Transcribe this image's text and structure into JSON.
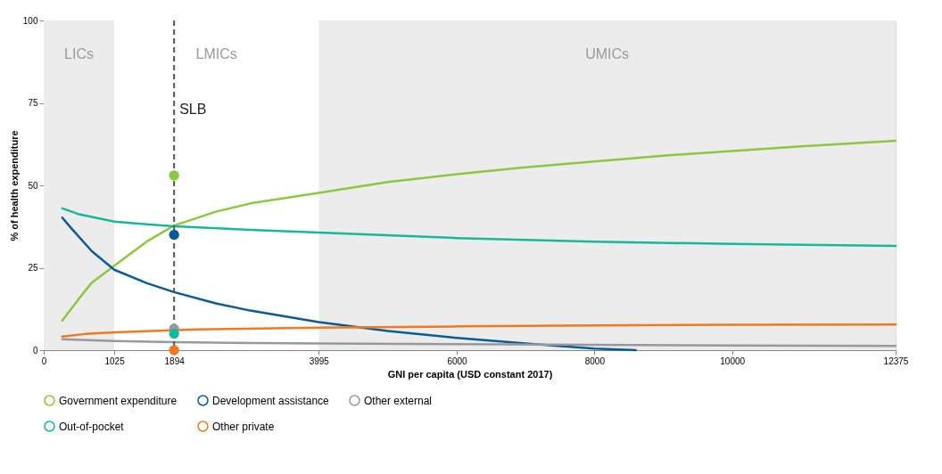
{
  "chart_data": {
    "type": "line",
    "xlabel": "GNI per capita (USD constant 2017)",
    "ylabel": "% of health expenditure",
    "xlim": [
      0,
      12375
    ],
    "xticks": [
      0,
      1025,
      1894,
      3995,
      6000,
      8000,
      10000,
      12375
    ],
    "ylim": [
      0,
      100
    ],
    "yticks": [
      0,
      25,
      50,
      75,
      100
    ],
    "grid": false,
    "legend": "bottom",
    "series": [
      {
        "name": "Government expenditure",
        "color": "#8dc63f",
        "x": [
          270,
          500,
          700,
          1025,
          1500,
          1894,
          2500,
          3000,
          3995,
          5000,
          6000,
          7000,
          8000,
          9000,
          10000,
          11000,
          12375
        ],
        "values": [
          9,
          15.3,
          20.5,
          25.6,
          33,
          37.8,
          42,
          44.5,
          47.7,
          51,
          53.4,
          55.5,
          57.2,
          59,
          60.4,
          61.8,
          63.5
        ]
      },
      {
        "name": "Development assistance",
        "color": "#0a5a96",
        "x": [
          270,
          400,
          700,
          1025,
          1500,
          1894,
          2500,
          3000,
          3995,
          5000,
          6000,
          7000,
          8000,
          8600
        ],
        "values": [
          40.2,
          37,
          30,
          24.4,
          20.3,
          17.6,
          14.2,
          12,
          8.5,
          5.8,
          3.7,
          2,
          0.5,
          0
        ]
      },
      {
        "name": "Other external",
        "color": "#999999",
        "x": [
          270,
          1025,
          1894,
          3995,
          6000,
          8000,
          10000,
          12375
        ],
        "values": [
          3.3,
          2.8,
          2.4,
          2,
          1.8,
          1.6,
          1.4,
          1.3
        ]
      },
      {
        "name": "Out-of-pocket",
        "color": "#17b79b",
        "x": [
          270,
          500,
          1025,
          1500,
          1894,
          3000,
          3995,
          6000,
          8000,
          10000,
          12375
        ],
        "values": [
          43,
          41.3,
          39,
          38.2,
          37.6,
          36.5,
          35.7,
          34,
          32.9,
          32.2,
          31.6
        ]
      },
      {
        "name": "Other private",
        "color": "#f07820",
        "x": [
          270,
          600,
          1025,
          2200,
          3995,
          6000,
          8000,
          10000,
          12375
        ],
        "values": [
          4.1,
          4.9,
          5.4,
          6.3,
          6.8,
          7.2,
          7.5,
          7.7,
          7.8
        ]
      },
      {
        "type": "scatter",
        "color": "#8dc63f",
        "x": [
          1894
        ],
        "values": [
          53
        ]
      },
      {
        "type": "scatter",
        "color": "#0a5a96",
        "x": [
          1894
        ],
        "values": [
          35
        ]
      },
      {
        "type": "scatter",
        "color": "#999999",
        "x": [
          1894
        ],
        "values": [
          6.5
        ]
      },
      {
        "type": "scatter",
        "color": "#17b79b",
        "x": [
          1894
        ],
        "values": [
          5
        ]
      },
      {
        "type": "scatter",
        "color": "#f07820",
        "x": [
          1894
        ],
        "values": [
          0
        ]
      }
    ],
    "bands": [
      {
        "axis": "x",
        "from": 0,
        "to": 1025,
        "label": "LICs",
        "color": "#ececec"
      },
      {
        "axis": "x",
        "from": 1025,
        "to": 3995,
        "label": "LMICs",
        "color": "#ffffff"
      },
      {
        "axis": "x",
        "from": 3995,
        "to": 12375,
        "label": "UMICs",
        "color": "#ececec"
      }
    ],
    "ref_lines": [
      {
        "axis": "x",
        "value": 1894,
        "label": "SLB",
        "color": "#555555",
        "line_style": "dashed"
      }
    ]
  }
}
